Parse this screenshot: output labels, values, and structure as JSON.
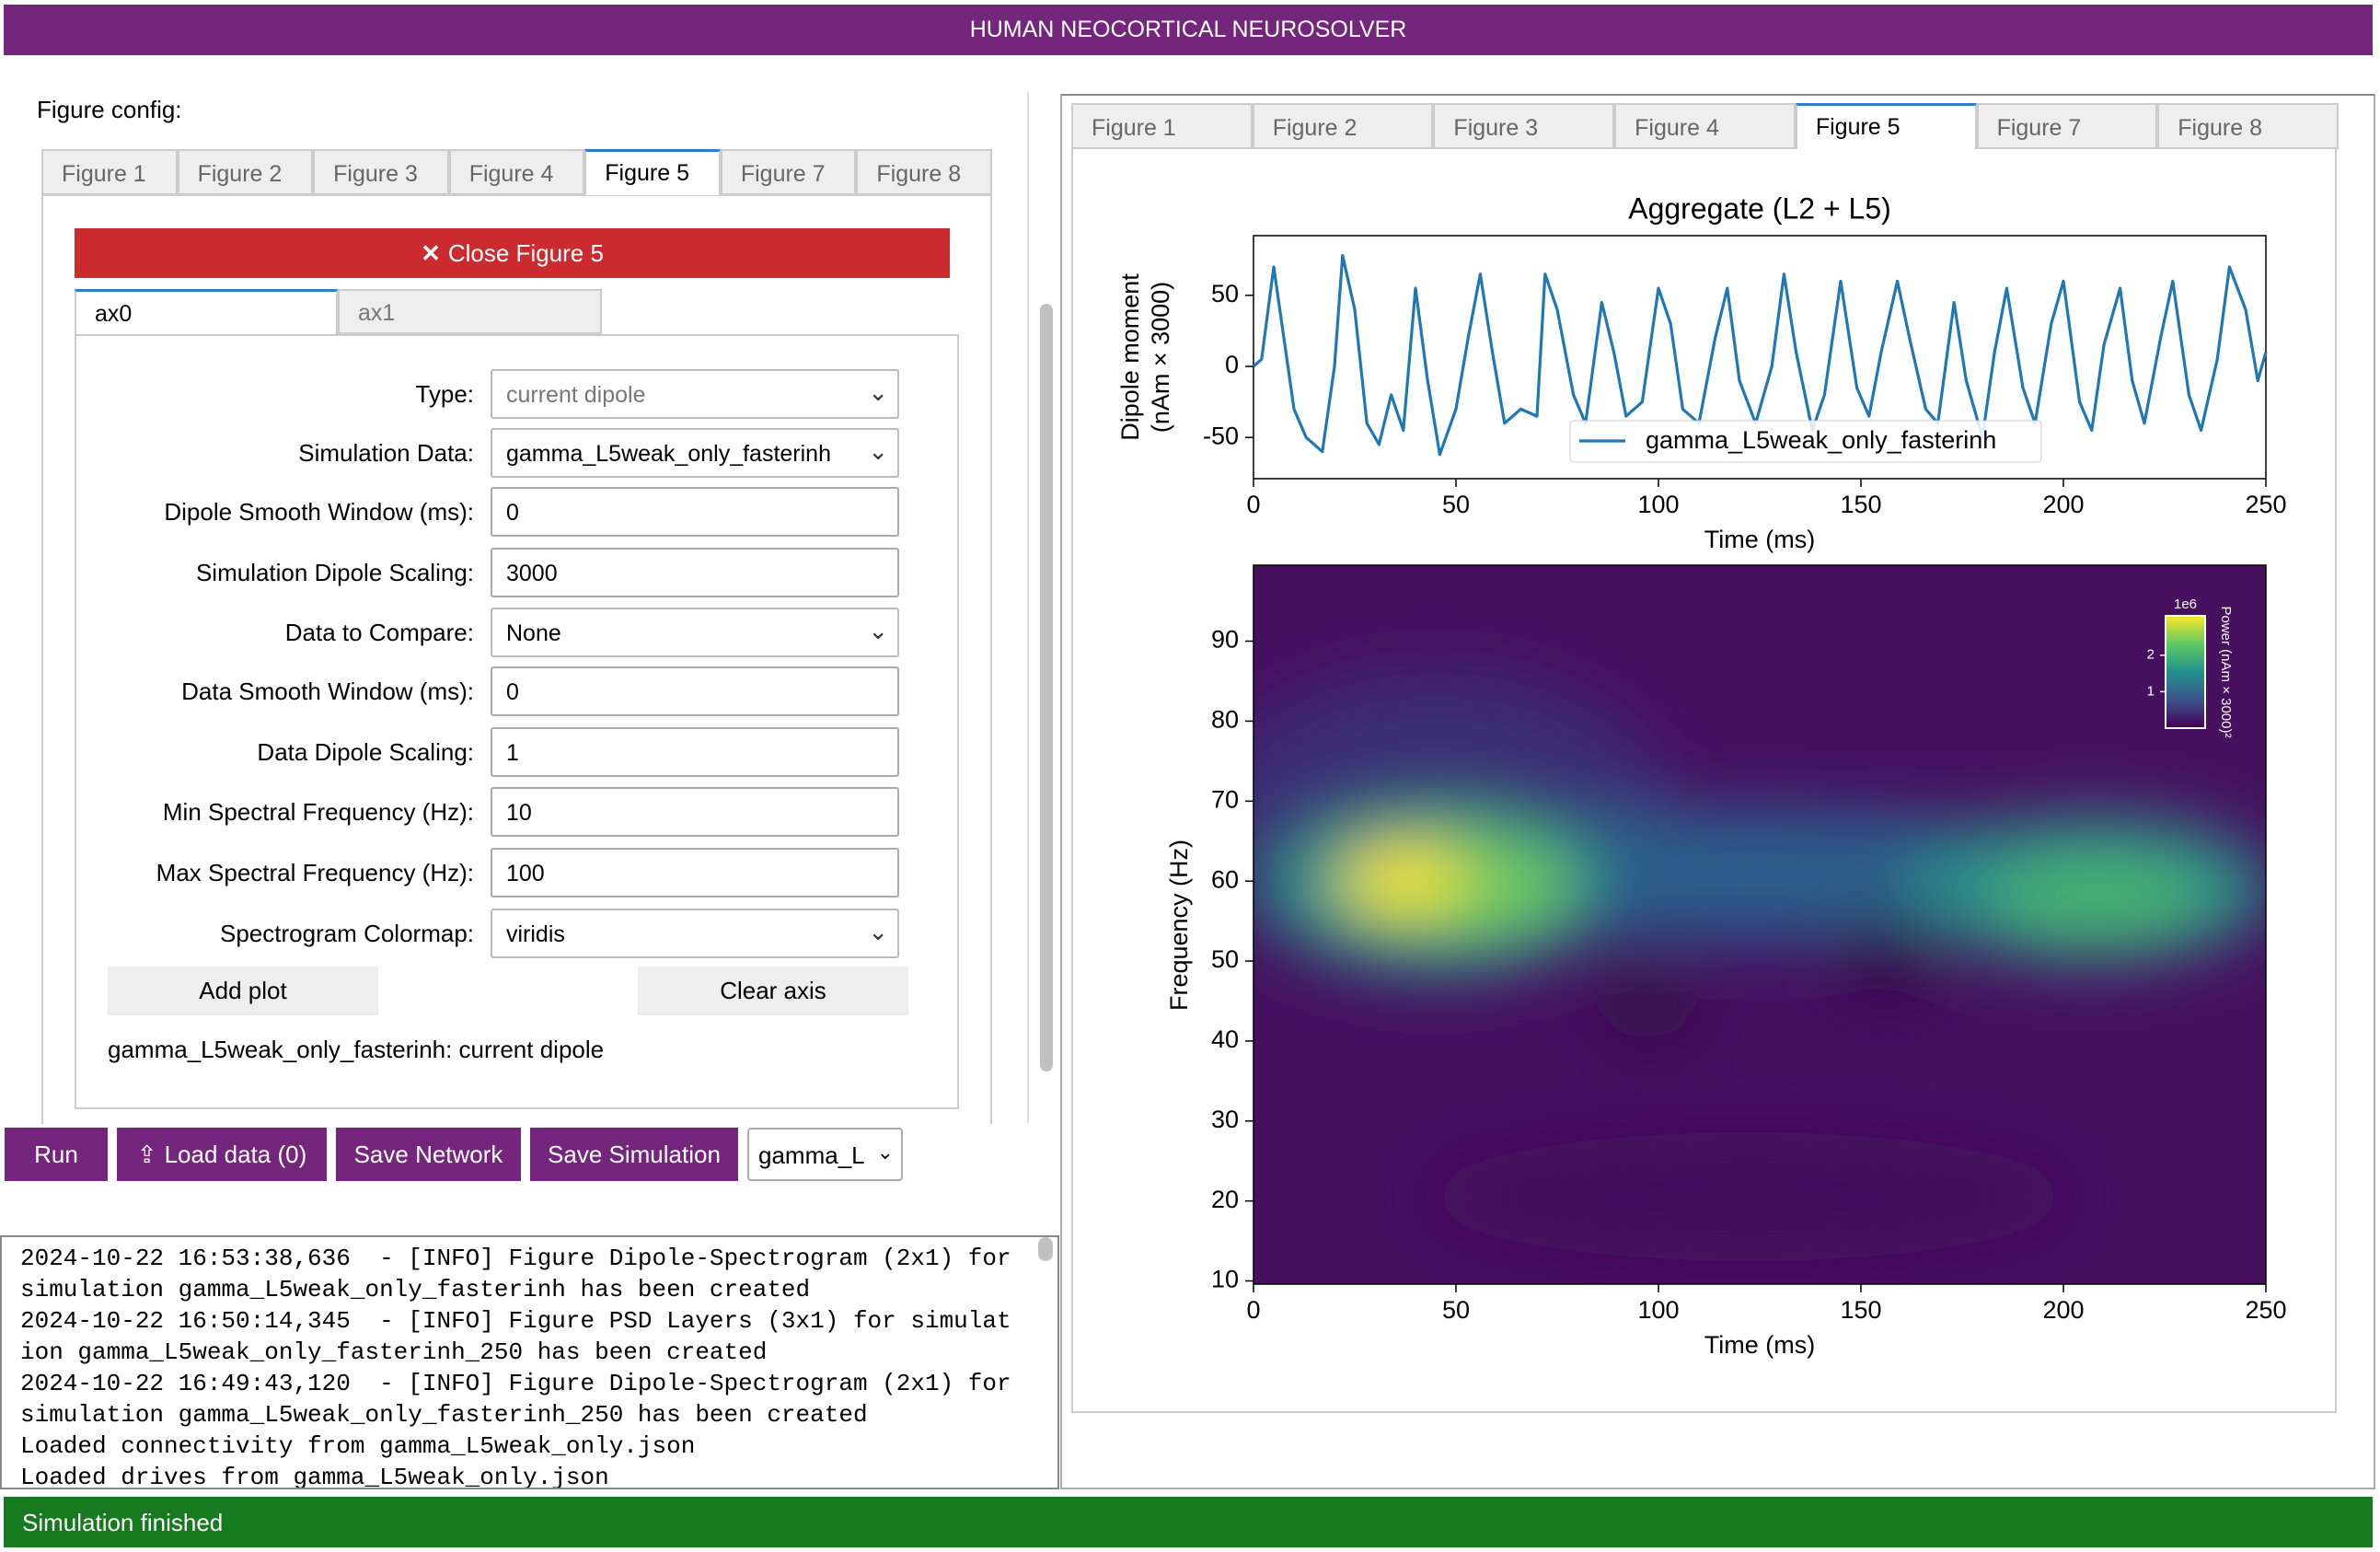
{
  "header": {
    "title": "HUMAN NEOCORTICAL NEUROSOLVER"
  },
  "left": {
    "label": "Figure config:",
    "tabs": [
      "Figure 1",
      "Figure 2",
      "Figure 3",
      "Figure 4",
      "Figure 5",
      "Figure 7",
      "Figure 8"
    ],
    "close_button": "Close Figure 5",
    "axis_tabs": [
      "ax0",
      "ax1"
    ],
    "form": [
      {
        "label": "Type:",
        "value": "current dipole",
        "control": "select"
      },
      {
        "label": "Simulation Data:",
        "value": "gamma_L5weak_only_fasterinh",
        "control": "select"
      },
      {
        "label": "Dipole Smooth Window (ms):",
        "value": "0",
        "control": "input"
      },
      {
        "label": "Simulation Dipole Scaling:",
        "value": "3000",
        "control": "input"
      },
      {
        "label": "Data to Compare:",
        "value": "None",
        "control": "select"
      },
      {
        "label": "Data Smooth Window (ms):",
        "value": "0",
        "control": "input"
      },
      {
        "label": "Data Dipole Scaling:",
        "value": "1",
        "control": "input"
      },
      {
        "label": "Min Spectral Frequency (Hz):",
        "value": "10",
        "control": "input"
      },
      {
        "label": "Max Spectral Frequency (Hz):",
        "value": "100",
        "control": "input"
      },
      {
        "label": "Spectrogram Colormap:",
        "value": "viridis",
        "control": "select"
      }
    ],
    "buttons": [
      "Add plot",
      "Clear axis"
    ],
    "summary": "gamma_L5weak_only_fasterinh: current dipole"
  },
  "toolbar": {
    "buttons": [
      "Run",
      "Load data (0)",
      "Save Network",
      "Save Simulation"
    ],
    "select": "gamma_L"
  },
  "log": [
    "2024-10-22 16:53:38,636  - [INFO] Figure Dipole-Spectrogram (2x1) for",
    "simulation gamma_L5weak_only_fasterinh has been created",
    "2024-10-22 16:50:14,345  - [INFO] Figure PSD Layers (3x1) for simulat",
    "ion gamma_L5weak_only_fasterinh_250 has been created",
    "2024-10-22 16:49:43,120  - [INFO] Figure Dipole-Spectrogram (2x1) for",
    "simulation gamma_L5weak_only_fasterinh_250 has been created",
    "Loaded connectivity from gamma_L5weak_only.json",
    "Loaded drives from gamma_L5weak_only.json"
  ],
  "status": "Simulation finished",
  "right": {
    "tabs": [
      "Figure 1",
      "Figure 2",
      "Figure 3",
      "Figure 4",
      "Figure 5",
      "Figure 7",
      "Figure 8"
    ],
    "charts": [
      {
        "type": "line",
        "title": "Aggregate (L2 + L5)",
        "xlabel": "Time (ms)",
        "ylabel": [
          "Dipole moment",
          "(nAm × 3000)"
        ],
        "x": [
          0,
          2,
          5,
          8,
          10,
          13,
          17,
          20,
          22,
          25,
          28,
          31,
          34,
          37,
          40,
          43,
          46,
          50,
          53,
          56,
          59,
          62,
          66,
          70,
          72,
          75,
          79,
          82,
          86,
          89,
          92,
          96,
          100,
          103,
          106,
          110,
          114,
          117,
          120,
          124,
          128,
          131,
          134,
          138,
          141,
          145,
          149,
          152,
          155,
          159,
          162,
          166,
          169,
          173,
          176,
          180,
          183,
          186,
          190,
          193,
          197,
          200,
          204,
          207,
          210,
          214,
          217,
          220,
          224,
          227,
          231,
          234,
          238,
          241,
          245,
          248,
          250
        ],
        "series": [
          {
            "name": "gamma_L5weak_only_fasterinh",
            "color": "#1f77b4",
            "values": [
              0,
              5,
              70,
              10,
              -30,
              -50,
              -60,
              0,
              78,
              40,
              -40,
              -55,
              -20,
              -45,
              55,
              -10,
              -62,
              -30,
              20,
              65,
              10,
              -40,
              -30,
              -35,
              65,
              40,
              -20,
              -40,
              45,
              10,
              -35,
              -25,
              55,
              30,
              -30,
              -40,
              20,
              55,
              -10,
              -40,
              0,
              65,
              10,
              -45,
              -20,
              60,
              -15,
              -35,
              10,
              60,
              20,
              -30,
              -40,
              45,
              -10,
              -50,
              10,
              55,
              -15,
              -40,
              30,
              60,
              -25,
              -45,
              15,
              55,
              -10,
              -40,
              20,
              60,
              -20,
              -45,
              5,
              70,
              40,
              -10,
              10
            ]
          }
        ],
        "xlim": [
          0,
          250
        ],
        "xticks": [
          0,
          50,
          100,
          150,
          200,
          250
        ],
        "ylim": [
          -79,
          92
        ],
        "yticks": [
          -50,
          0,
          50
        ],
        "legend": "lower center"
      },
      {
        "type": "spectrogram",
        "xlabel": "Time (ms)",
        "ylabel": "Frequency (Hz)",
        "colormap": "viridis",
        "xlim": [
          0,
          250
        ],
        "xticks": [
          0,
          50,
          100,
          150,
          200,
          250
        ],
        "ylim": [
          9.6,
          99.5
        ],
        "yticks": [
          10,
          20,
          30,
          40,
          50,
          60,
          70,
          80,
          90
        ],
        "colorbar": {
          "label": "Power (nAm × 3000)²",
          "offset_label": "1e6",
          "lim": [
            0,
            3.08
          ],
          "ticks": [
            1,
            2
          ]
        }
      }
    ]
  }
}
